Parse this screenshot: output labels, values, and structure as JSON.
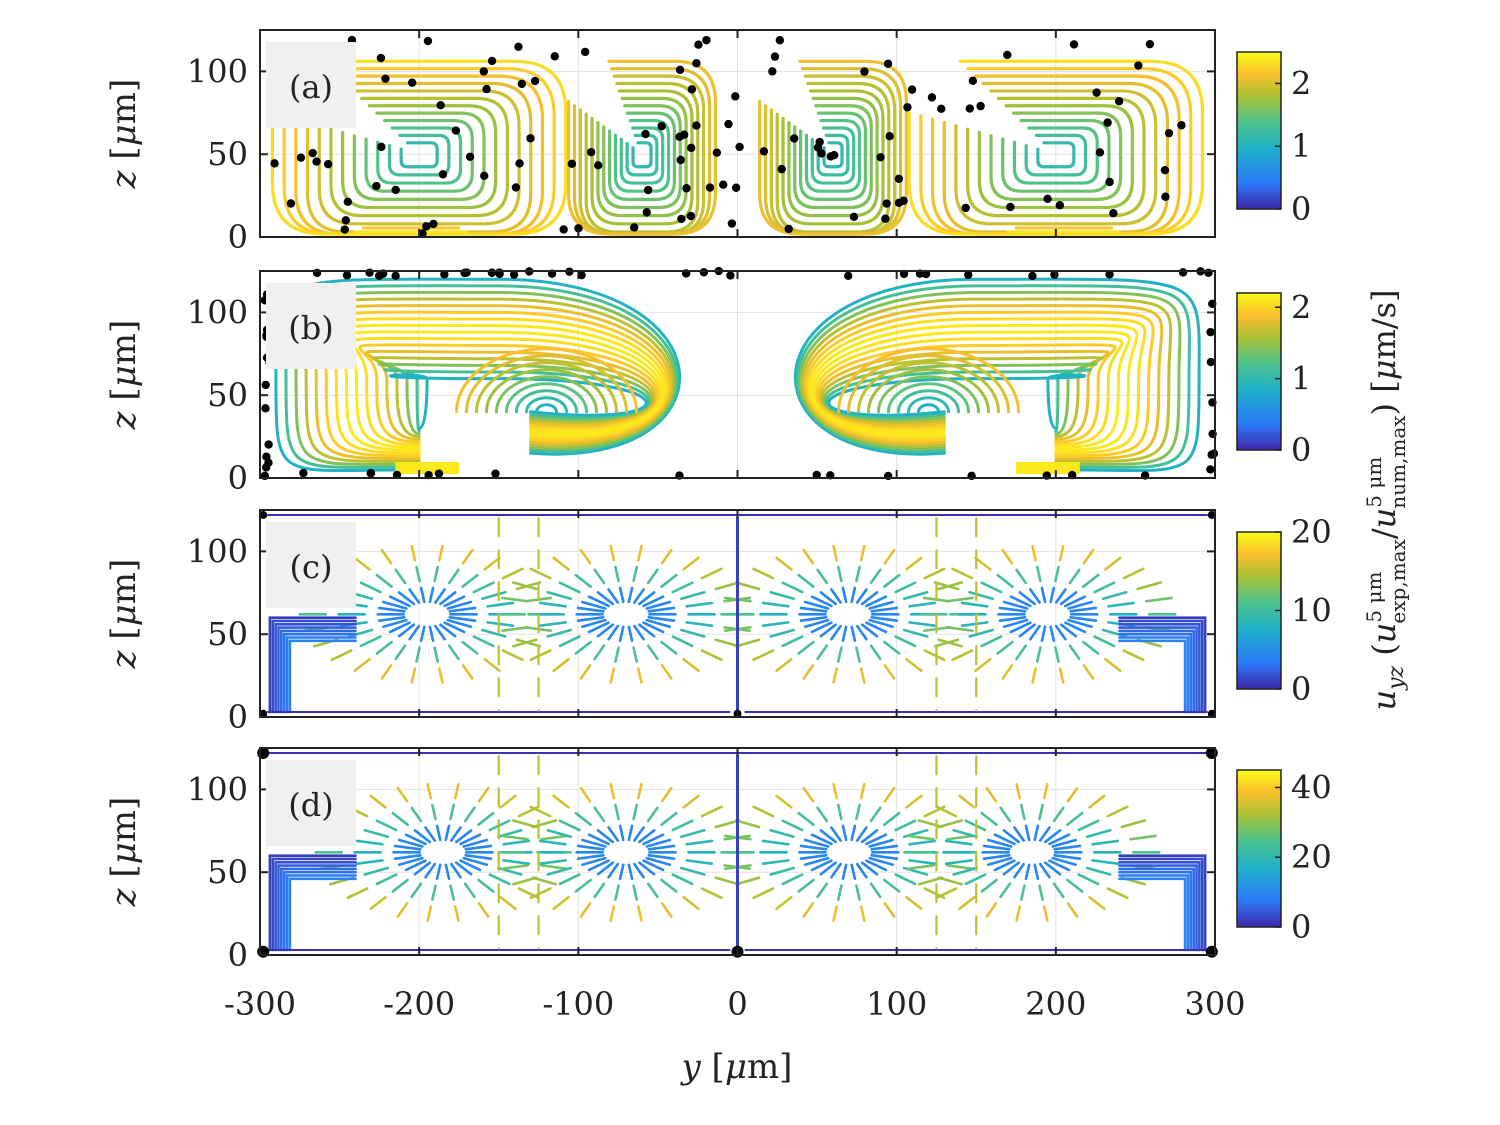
{
  "chart_data": [
    {
      "type": "streamline",
      "panel_label": "(a)",
      "ylabel": "z [μm]",
      "xlim": [
        -300,
        300
      ],
      "ylim": [
        0,
        125
      ],
      "yticks": [
        "0",
        "50",
        "100"
      ],
      "vortex_centers_y": [
        -200,
        -60,
        60,
        200
      ],
      "vortex_center_z": 50,
      "colorbar": {
        "ticks": [
          "0",
          "1",
          "2"
        ],
        "max": 2.5
      },
      "has_tracer_points": true
    },
    {
      "type": "streamline",
      "panel_label": "(b)",
      "ylabel": "z [μm]",
      "xlim": [
        -300,
        300
      ],
      "ylim": [
        0,
        125
      ],
      "yticks": [
        "0",
        "50",
        "100"
      ],
      "vortex_centers_y": [
        -175,
        -80,
        80,
        175
      ],
      "vortex_center_z": 40,
      "colorbar": {
        "ticks": [
          "0",
          "1",
          "2"
        ],
        "max": 2.2
      },
      "has_tracer_points": true
    },
    {
      "type": "streamline",
      "panel_label": "(c)",
      "ylabel": "z [μm]",
      "xlim": [
        -300,
        300
      ],
      "ylim": [
        0,
        125
      ],
      "yticks": [
        "0",
        "50",
        "100"
      ],
      "colorbar": {
        "ticks": [
          "0",
          "10",
          "20"
        ],
        "max": 20
      },
      "has_tracer_points": false
    },
    {
      "type": "streamline",
      "panel_label": "(d)",
      "ylabel": "z [μm]",
      "xlim": [
        -300,
        300
      ],
      "ylim": [
        0,
        125
      ],
      "yticks": [
        "0",
        "50",
        "100"
      ],
      "colorbar": {
        "ticks": [
          "0",
          "20",
          "40"
        ],
        "max": 45
      },
      "has_tracer_points": false
    }
  ],
  "shared": {
    "xlabel": "y [μm]",
    "xticks": [
      "-300",
      "-200",
      "-100",
      "0",
      "100",
      "200",
      "300"
    ],
    "colorbar_label": "u_yz (u^{5 μm}_{exp,max} / u^{5 μm}_{num,max}) [μm/s]",
    "colormap": [
      "#3e26a8",
      "#2c7cf9",
      "#1eb0c8",
      "#4cc28d",
      "#abc033",
      "#fbbf2d",
      "#f9fb15"
    ]
  }
}
